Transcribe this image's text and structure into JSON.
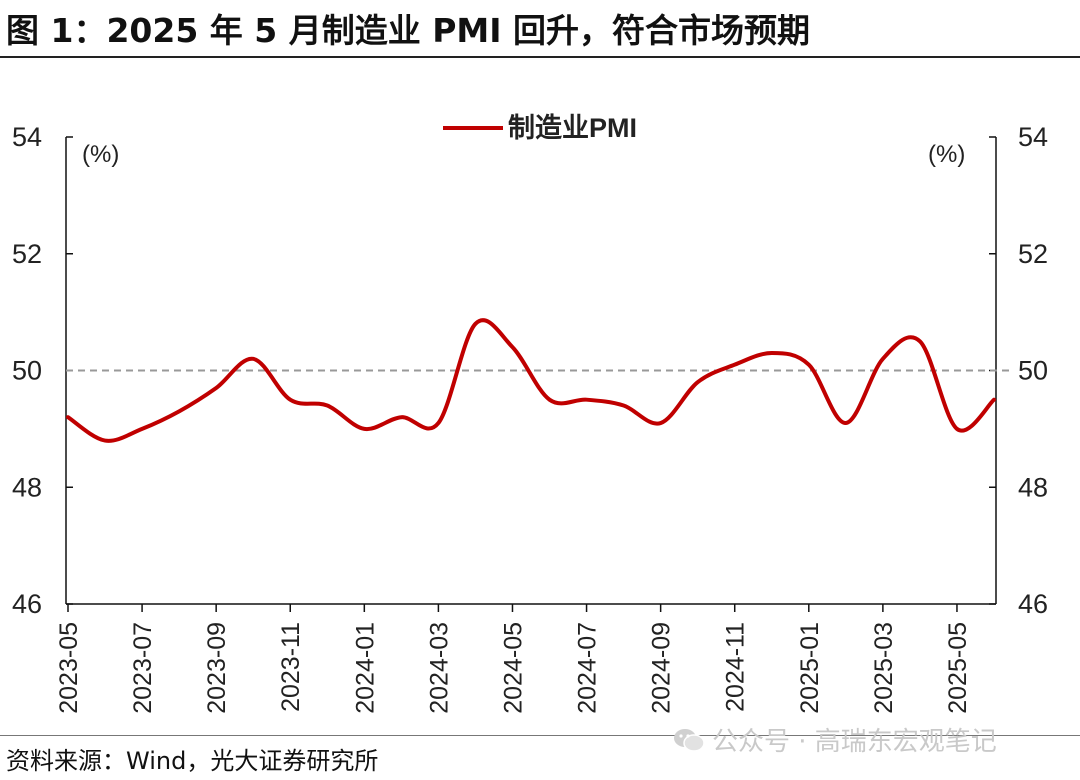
{
  "header": {
    "title": "图 1：2025 年 5 月制造业 PMI 回升，符合市场预期"
  },
  "footer": {
    "source": "资料来源：Wind，光大证券研究所"
  },
  "watermark": {
    "text": "公众号 · 高瑞东宏观笔记",
    "icon": "wechat-icon"
  },
  "chart_data": {
    "type": "line",
    "series": [
      {
        "name": "制造业PMI",
        "color": "#c00000",
        "values": [
          49.2,
          48.8,
          49.0,
          49.3,
          49.7,
          50.2,
          49.5,
          49.4,
          49.0,
          49.2,
          49.1,
          50.8,
          50.4,
          49.5,
          49.5,
          49.4,
          49.1,
          49.8,
          50.1,
          50.3,
          50.1,
          49.1,
          50.2,
          50.5,
          49.0,
          49.5
        ]
      }
    ],
    "x": [
      "2023-05",
      "2023-06",
      "2023-07",
      "2023-08",
      "2023-09",
      "2023-10",
      "2023-11",
      "2023-12",
      "2024-01",
      "2024-02",
      "2024-03",
      "2024-04",
      "2024-05",
      "2024-06",
      "2024-07",
      "2024-08",
      "2024-09",
      "2024-10",
      "2024-11",
      "2024-12",
      "2025-01",
      "2025-02",
      "2025-03",
      "2025-04",
      "2025-05",
      "2025-06"
    ],
    "x_tick_labels": [
      "2023-05",
      "2023-07",
      "2023-09",
      "2023-11",
      "2024-01",
      "2024-03",
      "2024-05",
      "2024-07",
      "2024-09",
      "2024-11",
      "2025-01",
      "2025-03",
      "2025-05"
    ],
    "y_ticks": [
      46,
      48,
      50,
      52,
      54
    ],
    "ylim": [
      46,
      54
    ],
    "reference_line": {
      "value": 50,
      "style": "dashed",
      "color": "#999999"
    },
    "left_axis_unit": "(%)",
    "right_axis_unit": "(%)",
    "legend_position": "top-center",
    "grid": false
  }
}
